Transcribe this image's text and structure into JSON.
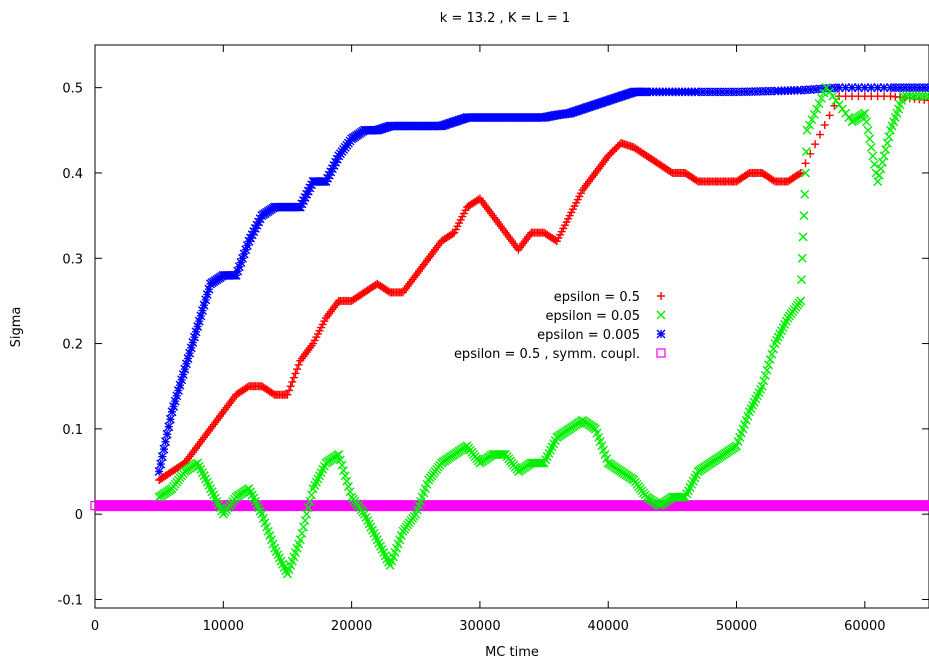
{
  "chart_data": {
    "type": "scatter",
    "title": "k = 13.2 , K = L = 1",
    "xlabel": "MC time",
    "ylabel": "Sigma",
    "xlim": [
      0,
      65000
    ],
    "ylim": [
      -0.11,
      0.55
    ],
    "x_ticks": [
      "0",
      "10000",
      "20000",
      "30000",
      "40000",
      "50000",
      "60000"
    ],
    "x_tick_values": [
      0,
      10000,
      20000,
      30000,
      40000,
      50000,
      60000
    ],
    "y_ticks": [
      "-0.1",
      "0",
      "0.1",
      "0.2",
      "0.3",
      "0.4",
      "0.5"
    ],
    "y_tick_values": [
      -0.1,
      0,
      0.1,
      0.2,
      0.3,
      0.4,
      0.5
    ],
    "grid": false,
    "legend_position": "center-right",
    "series": [
      {
        "name": "epsilon = 0.5",
        "marker": "+",
        "color": "#ff0000",
        "points": [
          [
            5000,
            0.04
          ],
          [
            6000,
            0.05
          ],
          [
            7000,
            0.06
          ],
          [
            8000,
            0.08
          ],
          [
            9000,
            0.1
          ],
          [
            10000,
            0.12
          ],
          [
            11000,
            0.14
          ],
          [
            12000,
            0.15
          ],
          [
            13000,
            0.15
          ],
          [
            14000,
            0.14
          ],
          [
            15000,
            0.14
          ],
          [
            16000,
            0.18
          ],
          [
            17000,
            0.2
          ],
          [
            18000,
            0.23
          ],
          [
            19000,
            0.25
          ],
          [
            20000,
            0.25
          ],
          [
            21000,
            0.26
          ],
          [
            22000,
            0.27
          ],
          [
            23000,
            0.26
          ],
          [
            24000,
            0.26
          ],
          [
            25000,
            0.28
          ],
          [
            26000,
            0.3
          ],
          [
            27000,
            0.32
          ],
          [
            28000,
            0.33
          ],
          [
            29000,
            0.36
          ],
          [
            30000,
            0.37
          ],
          [
            31000,
            0.35
          ],
          [
            32000,
            0.33
          ],
          [
            33000,
            0.31
          ],
          [
            34000,
            0.33
          ],
          [
            35000,
            0.33
          ],
          [
            36000,
            0.32
          ],
          [
            37000,
            0.35
          ],
          [
            38000,
            0.38
          ],
          [
            39000,
            0.4
          ],
          [
            40000,
            0.42
          ],
          [
            41000,
            0.435
          ],
          [
            42000,
            0.43
          ],
          [
            43000,
            0.42
          ],
          [
            44000,
            0.41
          ],
          [
            45000,
            0.4
          ],
          [
            46000,
            0.4
          ],
          [
            47000,
            0.39
          ],
          [
            48000,
            0.39
          ],
          [
            49000,
            0.39
          ],
          [
            50000,
            0.39
          ],
          [
            51000,
            0.4
          ],
          [
            52000,
            0.4
          ],
          [
            53000,
            0.39
          ],
          [
            54000,
            0.39
          ],
          [
            55000,
            0.4
          ],
          [
            58000,
            0.49
          ],
          [
            62000,
            0.49
          ],
          [
            65000,
            0.485
          ]
        ]
      },
      {
        "name": "epsilon = 0.05",
        "marker": "x",
        "color": "#00ee00",
        "points": [
          [
            5000,
            0.02
          ],
          [
            6000,
            0.03
          ],
          [
            7000,
            0.05
          ],
          [
            8000,
            0.06
          ],
          [
            9000,
            0.03
          ],
          [
            10000,
            0.0
          ],
          [
            11000,
            0.02
          ],
          [
            12000,
            0.03
          ],
          [
            13000,
            0.0
          ],
          [
            14000,
            -0.04
          ],
          [
            15000,
            -0.07
          ],
          [
            16000,
            -0.03
          ],
          [
            17000,
            0.03
          ],
          [
            18000,
            0.06
          ],
          [
            19000,
            0.07
          ],
          [
            20000,
            0.02
          ],
          [
            21000,
            0.0
          ],
          [
            22000,
            -0.03
          ],
          [
            23000,
            -0.06
          ],
          [
            24000,
            -0.02
          ],
          [
            25000,
            0.0
          ],
          [
            26000,
            0.04
          ],
          [
            27000,
            0.06
          ],
          [
            28000,
            0.07
          ],
          [
            29000,
            0.08
          ],
          [
            30000,
            0.06
          ],
          [
            31000,
            0.07
          ],
          [
            32000,
            0.07
          ],
          [
            33000,
            0.05
          ],
          [
            34000,
            0.06
          ],
          [
            35000,
            0.06
          ],
          [
            36000,
            0.09
          ],
          [
            37000,
            0.1
          ],
          [
            38000,
            0.11
          ],
          [
            39000,
            0.1
          ],
          [
            40000,
            0.06
          ],
          [
            41000,
            0.05
          ],
          [
            42000,
            0.04
          ],
          [
            43000,
            0.02
          ],
          [
            44000,
            0.01
          ],
          [
            45000,
            0.02
          ],
          [
            46000,
            0.02
          ],
          [
            47000,
            0.05
          ],
          [
            48000,
            0.06
          ],
          [
            49000,
            0.07
          ],
          [
            50000,
            0.08
          ],
          [
            51000,
            0.12
          ],
          [
            52000,
            0.15
          ],
          [
            53000,
            0.2
          ],
          [
            54000,
            0.23
          ],
          [
            55000,
            0.25
          ],
          [
            55500,
            0.45
          ],
          [
            57000,
            0.5
          ],
          [
            59000,
            0.46
          ],
          [
            60000,
            0.47
          ],
          [
            61000,
            0.39
          ],
          [
            62000,
            0.45
          ],
          [
            63000,
            0.49
          ],
          [
            65000,
            0.49
          ]
        ]
      },
      {
        "name": "epsilon = 0.005",
        "marker": "*",
        "color": "#0000ff",
        "points": [
          [
            5000,
            0.05
          ],
          [
            6000,
            0.12
          ],
          [
            7000,
            0.17
          ],
          [
            8000,
            0.22
          ],
          [
            9000,
            0.27
          ],
          [
            10000,
            0.28
          ],
          [
            11000,
            0.28
          ],
          [
            12000,
            0.32
          ],
          [
            13000,
            0.35
          ],
          [
            14000,
            0.36
          ],
          [
            15000,
            0.36
          ],
          [
            16000,
            0.36
          ],
          [
            17000,
            0.39
          ],
          [
            18000,
            0.39
          ],
          [
            19000,
            0.42
          ],
          [
            20000,
            0.44
          ],
          [
            21000,
            0.45
          ],
          [
            22000,
            0.45
          ],
          [
            23000,
            0.455
          ],
          [
            24000,
            0.455
          ],
          [
            25000,
            0.455
          ],
          [
            26000,
            0.455
          ],
          [
            27000,
            0.455
          ],
          [
            28000,
            0.46
          ],
          [
            29000,
            0.465
          ],
          [
            30000,
            0.465
          ],
          [
            31000,
            0.465
          ],
          [
            32000,
            0.465
          ],
          [
            33000,
            0.465
          ],
          [
            34000,
            0.465
          ],
          [
            35000,
            0.465
          ],
          [
            36000,
            0.468
          ],
          [
            37000,
            0.47
          ],
          [
            38000,
            0.475
          ],
          [
            39000,
            0.48
          ],
          [
            40000,
            0.485
          ],
          [
            41000,
            0.49
          ],
          [
            42000,
            0.495
          ],
          [
            43000,
            0.495
          ],
          [
            45000,
            0.495
          ],
          [
            47000,
            0.495
          ],
          [
            50000,
            0.495
          ],
          [
            53000,
            0.496
          ],
          [
            55000,
            0.497
          ],
          [
            58000,
            0.5
          ],
          [
            62000,
            0.5
          ],
          [
            65000,
            0.5
          ]
        ]
      },
      {
        "name": "epsilon = 0.5 , symm. coupl.",
        "marker": "square",
        "color": "#ff00ff",
        "points": [
          [
            0,
            0.01
          ],
          [
            5000,
            0.01
          ],
          [
            10000,
            0.01
          ],
          [
            15000,
            0.01
          ],
          [
            20000,
            0.01
          ],
          [
            25000,
            0.01
          ],
          [
            30000,
            0.01
          ],
          [
            35000,
            0.01
          ],
          [
            40000,
            0.01
          ],
          [
            45000,
            0.01
          ],
          [
            50000,
            0.01
          ],
          [
            55000,
            0.01
          ],
          [
            60000,
            0.01
          ],
          [
            65000,
            0.01
          ]
        ]
      }
    ]
  }
}
